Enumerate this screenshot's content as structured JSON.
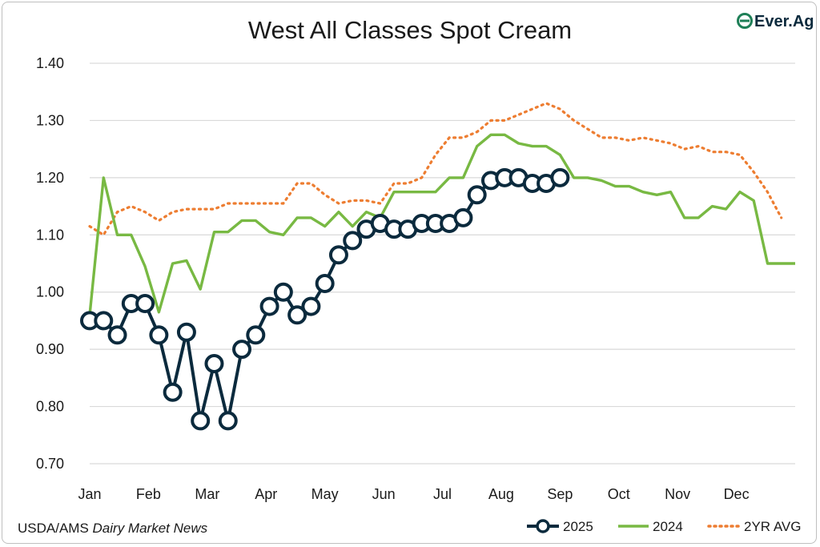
{
  "logo": {
    "text": "Ever.Ag"
  },
  "source": {
    "prefix": "USDA/AMS ",
    "italic": "Dairy Market News"
  },
  "chart_data": {
    "type": "line",
    "title": "West All Classes Spot Cream",
    "xlabel": "",
    "ylabel": "",
    "ylim": [
      0.7,
      1.4
    ],
    "yticks": [
      "0.70",
      "0.80",
      "0.90",
      "1.00",
      "1.10",
      "1.20",
      "1.30",
      "1.40"
    ],
    "months": [
      "Jan",
      "Feb",
      "Mar",
      "Apr",
      "May",
      "Jun",
      "Jul",
      "Aug",
      "Sep",
      "Oct",
      "Nov",
      "Dec"
    ],
    "weeks_per_year": 52,
    "legend_position": "bottom-right",
    "colors": {
      "2025": "#0b2a3d",
      "2024": "#78b943",
      "2YR AVG": "#ed7d31"
    },
    "series": [
      {
        "name": "2025",
        "style": "line-circle-markers",
        "values": [
          0.95,
          0.95,
          0.925,
          0.98,
          0.98,
          0.925,
          0.825,
          0.93,
          0.775,
          0.875,
          0.775,
          0.9,
          0.925,
          0.975,
          1.0,
          0.96,
          0.975,
          1.015,
          1.065,
          1.09,
          1.11,
          1.12,
          1.11,
          1.11,
          1.12,
          1.12,
          1.12,
          1.13,
          1.17,
          1.195,
          1.2,
          1.2,
          1.19,
          1.19,
          1.2
        ]
      },
      {
        "name": "2024",
        "style": "line",
        "values": [
          0.96,
          1.2,
          1.1,
          1.1,
          1.045,
          0.965,
          1.05,
          1.055,
          1.005,
          1.105,
          1.105,
          1.125,
          1.125,
          1.105,
          1.1,
          1.13,
          1.13,
          1.115,
          1.14,
          1.115,
          1.14,
          1.13,
          1.175,
          1.175,
          1.175,
          1.175,
          1.2,
          1.2,
          1.255,
          1.275,
          1.275,
          1.26,
          1.255,
          1.255,
          1.24,
          1.2,
          1.2,
          1.195,
          1.185,
          1.185,
          1.175,
          1.17,
          1.175,
          1.13,
          1.13,
          1.15,
          1.145,
          1.175,
          1.16,
          1.05,
          1.05,
          1.05
        ]
      },
      {
        "name": "2YR AVG",
        "style": "dotted",
        "values": [
          1.115,
          1.1,
          1.14,
          1.15,
          1.14,
          1.125,
          1.14,
          1.145,
          1.145,
          1.145,
          1.155,
          1.155,
          1.155,
          1.155,
          1.155,
          1.19,
          1.19,
          1.17,
          1.155,
          1.16,
          1.16,
          1.155,
          1.19,
          1.19,
          1.2,
          1.24,
          1.27,
          1.27,
          1.28,
          1.3,
          1.3,
          1.31,
          1.32,
          1.33,
          1.32,
          1.3,
          1.285,
          1.27,
          1.27,
          1.265,
          1.27,
          1.265,
          1.26,
          1.25,
          1.255,
          1.245,
          1.245,
          1.24,
          1.21,
          1.175,
          1.13
        ]
      }
    ]
  }
}
